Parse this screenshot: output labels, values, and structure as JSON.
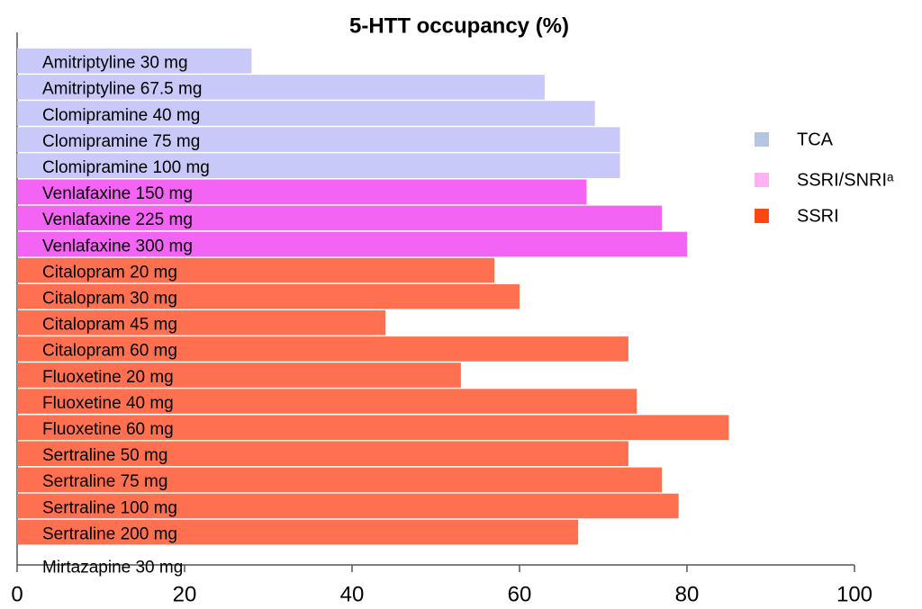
{
  "chart_data": {
    "type": "bar",
    "orientation": "horizontal",
    "title": "5-HTT occupancy (%)",
    "categories": [
      "Amitriptyline 30 mg",
      "Amitriptyline 67.5 mg",
      "Clomipramine 40 mg",
      "Clomipramine 75 mg",
      "Clomipramine 100 mg",
      "Venlafaxine 150 mg",
      "Venlafaxine 225 mg",
      "Venlafaxine 300 mg",
      "Citalopram 20 mg",
      "Citalopram 30 mg",
      "Citalopram 45 mg",
      "Citalopram 60 mg",
      "Fluoxetine 20 mg",
      "Fluoxetine 40 mg",
      "Fluoxetine 60 mg",
      "Sertraline 50 mg",
      "Sertraline 75 mg",
      "Sertraline 100 mg",
      "Sertraline 200 mg",
      "Mirtazapine 30 mg"
    ],
    "series": [
      {
        "name": "TCA",
        "color": "#c9c9f9",
        "legend_color": "#b4c6e4",
        "values": [
          28,
          63,
          69,
          72,
          72,
          null,
          null,
          null,
          null,
          null,
          null,
          null,
          null,
          null,
          null,
          null,
          null,
          null,
          null,
          null
        ]
      },
      {
        "name": "SSRI/SNRIᵃ",
        "color": "#f464f4",
        "legend_color": "#ffb2f2",
        "values": [
          null,
          null,
          null,
          null,
          null,
          68,
          77,
          80,
          null,
          null,
          null,
          null,
          null,
          null,
          null,
          null,
          null,
          null,
          null,
          null
        ]
      },
      {
        "name": "SSRI",
        "color": "#ff7050",
        "legend_color": "#ff4512",
        "values": [
          null,
          null,
          null,
          null,
          null,
          null,
          null,
          null,
          57,
          60,
          44,
          73,
          53,
          74,
          85,
          73,
          77,
          79,
          67,
          null
        ]
      }
    ],
    "xlim": [
      0,
      100
    ],
    "xticks": [
      0,
      20,
      40,
      60,
      80,
      100
    ],
    "legend": "right"
  }
}
